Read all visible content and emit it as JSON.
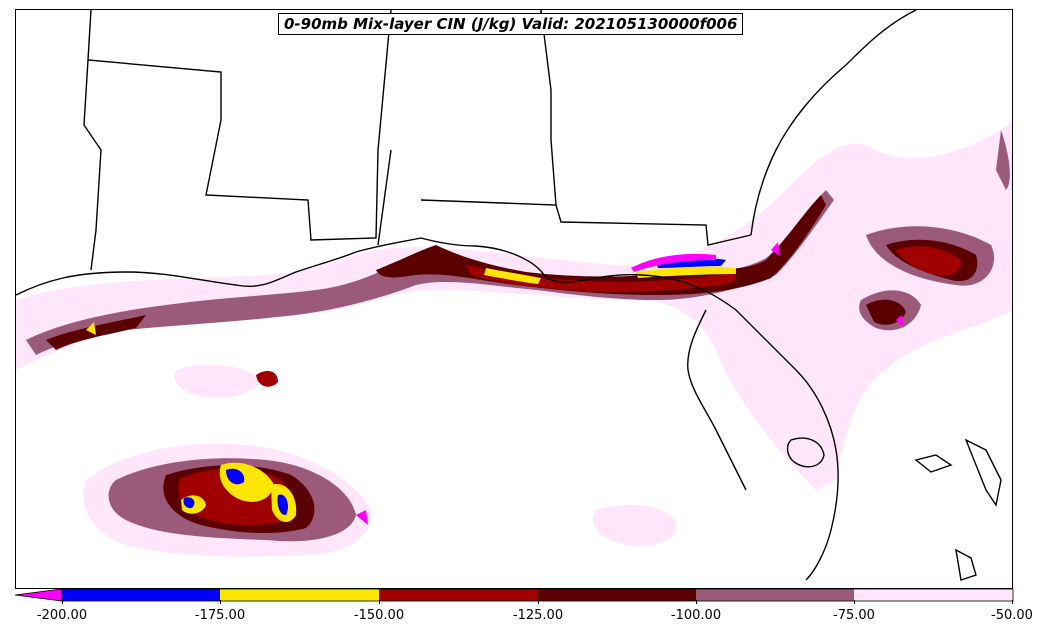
{
  "title": "0-90mb Mix-layer CIN (J/kg) Valid: 202105130000f006",
  "colorbar": {
    "levels": [
      "-200.00",
      "-175.00",
      "-150.00",
      "-125.00",
      "-100.00",
      "-75.00",
      "-50.00"
    ],
    "under_color": "#ff00ff",
    "colors": [
      "#0000ff",
      "#ffe600",
      "#a00000",
      "#5a0000",
      "#9b5a7a",
      "#ffe6fa"
    ]
  },
  "palette": {
    "extreme": "#ff00ff",
    "very_strong": "#0000ff",
    "strong": "#ffe600",
    "moderate_high": "#a00000",
    "moderate": "#5a0000",
    "weak": "#9b5a7a",
    "very_weak": "#ffe6fa",
    "borders": "#000000"
  }
}
